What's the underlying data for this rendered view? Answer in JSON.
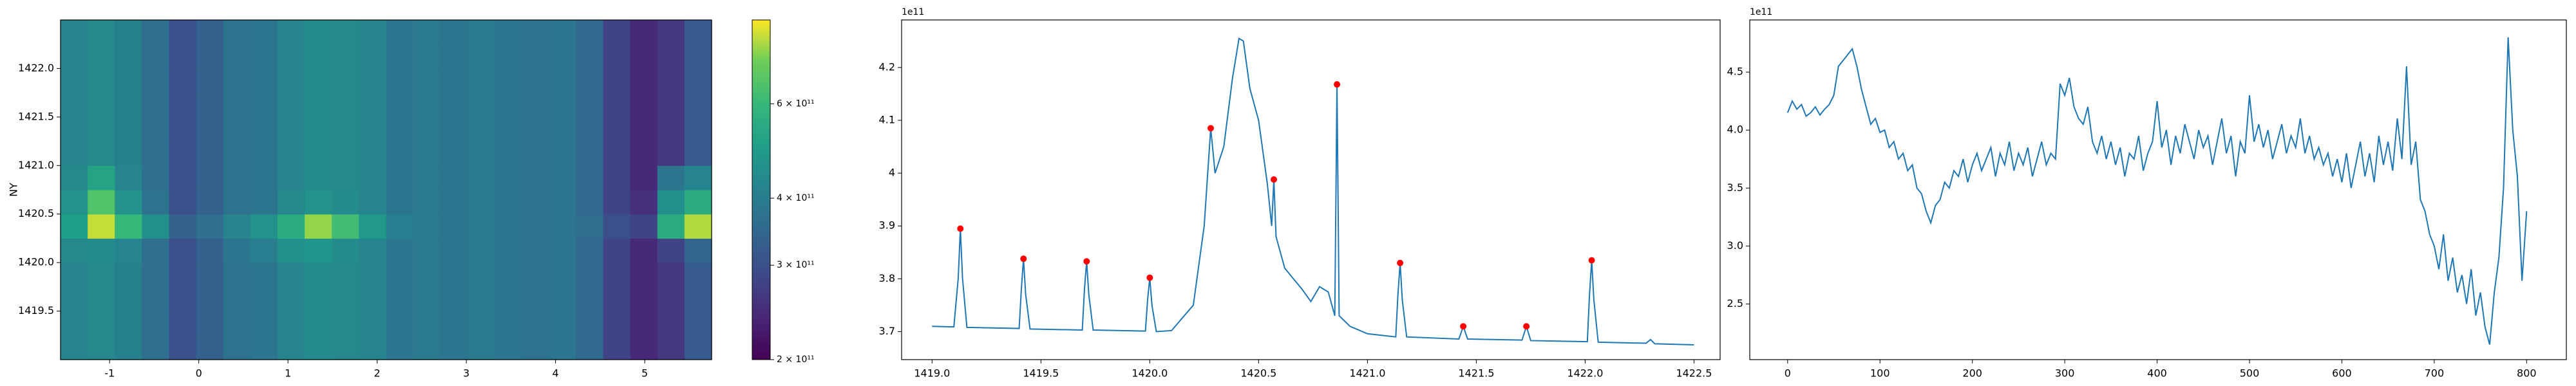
{
  "chart_data": [
    {
      "type": "heatmap",
      "ylabel": "NY",
      "xlim": [
        -1.55,
        5.75
      ],
      "ylim": [
        1419.0,
        1422.5
      ],
      "xticks": [
        -1,
        0,
        1,
        2,
        3,
        4,
        5
      ],
      "yticks": [
        1419.5,
        {
          "value": 1420,
          "label": "1420.0"
        },
        1420.5,
        {
          "value": 1421,
          "label": "1421.0"
        },
        1421.5,
        {
          "value": 1422,
          "label": "1422.0"
        }
      ],
      "log_color": true,
      "clim": [
        200000000000.0,
        860000000000.0
      ],
      "colormap": "viridis",
      "cticks": [
        {
          "value": 200000000000.0,
          "label": "2 × 10¹¹"
        },
        {
          "value": 300000000000.0,
          "label": "3 × 10¹¹"
        },
        {
          "value": 400000000000.0,
          "label": "4 × 10¹¹"
        },
        {
          "value": 600000000000.0,
          "label": "6 × 10¹¹"
        }
      ],
      "z": [
        [
          420000000000.0,
          430000000000.0,
          410000000000.0,
          360000000000.0,
          300000000000.0,
          330000000000.0,
          370000000000.0,
          380000000000.0,
          420000000000.0,
          440000000000.0,
          430000000000.0,
          420000000000.0,
          380000000000.0,
          390000000000.0,
          380000000000.0,
          390000000000.0,
          380000000000.0,
          370000000000.0,
          380000000000.0,
          350000000000.0,
          280000000000.0,
          240000000000.0,
          260000000000.0,
          320000000000.0
        ],
        [
          420000000000.0,
          430000000000.0,
          410000000000.0,
          360000000000.0,
          300000000000.0,
          330000000000.0,
          370000000000.0,
          380000000000.0,
          420000000000.0,
          440000000000.0,
          430000000000.0,
          420000000000.0,
          380000000000.0,
          390000000000.0,
          380000000000.0,
          390000000000.0,
          380000000000.0,
          370000000000.0,
          380000000000.0,
          350000000000.0,
          280000000000.0,
          240000000000.0,
          260000000000.0,
          320000000000.0
        ],
        [
          420000000000.0,
          430000000000.0,
          410000000000.0,
          360000000000.0,
          300000000000.0,
          330000000000.0,
          370000000000.0,
          380000000000.0,
          420000000000.0,
          440000000000.0,
          430000000000.0,
          420000000000.0,
          380000000000.0,
          390000000000.0,
          380000000000.0,
          390000000000.0,
          380000000000.0,
          370000000000.0,
          380000000000.0,
          350000000000.0,
          280000000000.0,
          240000000000.0,
          260000000000.0,
          320000000000.0
        ],
        [
          420000000000.0,
          430000000000.0,
          410000000000.0,
          360000000000.0,
          300000000000.0,
          330000000000.0,
          370000000000.0,
          380000000000.0,
          420000000000.0,
          440000000000.0,
          430000000000.0,
          420000000000.0,
          380000000000.0,
          390000000000.0,
          380000000000.0,
          390000000000.0,
          380000000000.0,
          370000000000.0,
          380000000000.0,
          350000000000.0,
          280000000000.0,
          240000000000.0,
          260000000000.0,
          320000000000.0
        ],
        [
          430000000000.0,
          440000000000.0,
          420000000000.0,
          360000000000.0,
          300000000000.0,
          330000000000.0,
          380000000000.0,
          400000000000.0,
          450000000000.0,
          470000000000.0,
          440000000000.0,
          420000000000.0,
          380000000000.0,
          390000000000.0,
          380000000000.0,
          390000000000.0,
          380000000000.0,
          370000000000.0,
          380000000000.0,
          350000000000.0,
          280000000000.0,
          240000000000.0,
          280000000000.0,
          340000000000.0
        ],
        [
          500000000000.0,
          800000000000.0,
          600000000000.0,
          450000000000.0,
          330000000000.0,
          360000000000.0,
          420000000000.0,
          460000000000.0,
          550000000000.0,
          750000000000.0,
          620000000000.0,
          480000000000.0,
          400000000000.0,
          390000000000.0,
          380000000000.0,
          390000000000.0,
          380000000000.0,
          370000000000.0,
          380000000000.0,
          360000000000.0,
          300000000000.0,
          280000000000.0,
          550000000000.0,
          780000000000.0
        ],
        [
          460000000000.0,
          650000000000.0,
          460000000000.0,
          370000000000.0,
          300000000000.0,
          330000000000.0,
          370000000000.0,
          380000000000.0,
          430000000000.0,
          460000000000.0,
          440000000000.0,
          420000000000.0,
          380000000000.0,
          390000000000.0,
          380000000000.0,
          390000000000.0,
          380000000000.0,
          370000000000.0,
          380000000000.0,
          350000000000.0,
          280000000000.0,
          250000000000.0,
          450000000000.0,
          550000000000.0
        ],
        [
          430000000000.0,
          520000000000.0,
          420000000000.0,
          360000000000.0,
          300000000000.0,
          330000000000.0,
          370000000000.0,
          380000000000.0,
          420000000000.0,
          440000000000.0,
          430000000000.0,
          420000000000.0,
          380000000000.0,
          390000000000.0,
          380000000000.0,
          390000000000.0,
          380000000000.0,
          370000000000.0,
          380000000000.0,
          350000000000.0,
          280000000000.0,
          240000000000.0,
          380000000000.0,
          420000000000.0
        ],
        [
          420000000000.0,
          430000000000.0,
          410000000000.0,
          360000000000.0,
          300000000000.0,
          330000000000.0,
          370000000000.0,
          380000000000.0,
          420000000000.0,
          440000000000.0,
          430000000000.0,
          420000000000.0,
          380000000000.0,
          390000000000.0,
          380000000000.0,
          390000000000.0,
          380000000000.0,
          370000000000.0,
          380000000000.0,
          350000000000.0,
          280000000000.0,
          240000000000.0,
          260000000000.0,
          320000000000.0
        ],
        [
          420000000000.0,
          430000000000.0,
          410000000000.0,
          360000000000.0,
          300000000000.0,
          330000000000.0,
          370000000000.0,
          380000000000.0,
          420000000000.0,
          440000000000.0,
          430000000000.0,
          420000000000.0,
          380000000000.0,
          390000000000.0,
          380000000000.0,
          390000000000.0,
          380000000000.0,
          370000000000.0,
          380000000000.0,
          350000000000.0,
          280000000000.0,
          240000000000.0,
          260000000000.0,
          320000000000.0
        ],
        [
          420000000000.0,
          430000000000.0,
          410000000000.0,
          360000000000.0,
          300000000000.0,
          330000000000.0,
          370000000000.0,
          380000000000.0,
          420000000000.0,
          440000000000.0,
          430000000000.0,
          420000000000.0,
          380000000000.0,
          390000000000.0,
          380000000000.0,
          390000000000.0,
          380000000000.0,
          370000000000.0,
          380000000000.0,
          350000000000.0,
          280000000000.0,
          240000000000.0,
          260000000000.0,
          320000000000.0
        ],
        [
          420000000000.0,
          430000000000.0,
          410000000000.0,
          360000000000.0,
          300000000000.0,
          330000000000.0,
          370000000000.0,
          380000000000.0,
          420000000000.0,
          440000000000.0,
          430000000000.0,
          420000000000.0,
          380000000000.0,
          390000000000.0,
          380000000000.0,
          390000000000.0,
          380000000000.0,
          370000000000.0,
          380000000000.0,
          350000000000.0,
          280000000000.0,
          240000000000.0,
          260000000000.0,
          320000000000.0
        ],
        [
          420000000000.0,
          430000000000.0,
          410000000000.0,
          360000000000.0,
          300000000000.0,
          330000000000.0,
          370000000000.0,
          380000000000.0,
          420000000000.0,
          440000000000.0,
          430000000000.0,
          420000000000.0,
          380000000000.0,
          390000000000.0,
          380000000000.0,
          390000000000.0,
          380000000000.0,
          370000000000.0,
          380000000000.0,
          350000000000.0,
          280000000000.0,
          240000000000.0,
          260000000000.0,
          320000000000.0
        ],
        [
          420000000000.0,
          430000000000.0,
          410000000000.0,
          360000000000.0,
          300000000000.0,
          330000000000.0,
          370000000000.0,
          380000000000.0,
          420000000000.0,
          440000000000.0,
          430000000000.0,
          420000000000.0,
          380000000000.0,
          390000000000.0,
          380000000000.0,
          390000000000.0,
          380000000000.0,
          370000000000.0,
          380000000000.0,
          350000000000.0,
          280000000000.0,
          240000000000.0,
          260000000000.0,
          320000000000.0
        ]
      ]
    },
    {
      "type": "line",
      "offset_label": "1e11",
      "color": "#1f77b4",
      "xlim": [
        1418.86,
        1422.62
      ],
      "ylim": [
        3.647,
        4.29
      ],
      "xticks": [
        {
          "value": 1419,
          "label": "1419.0"
        },
        1419.5,
        {
          "value": 1420,
          "label": "1420.0"
        },
        1420.5,
        {
          "value": 1421,
          "label": "1421.0"
        },
        1421.5,
        {
          "value": 1422,
          "label": "1422.0"
        },
        1422.5
      ],
      "yticks": [
        3.7,
        3.8,
        3.9,
        4.0,
        4.1,
        4.2
      ],
      "x": [
        1419.0,
        1419.1,
        1419.12,
        1419.13,
        1419.14,
        1419.16,
        1419.4,
        1419.41,
        1419.42,
        1419.43,
        1419.45,
        1419.69,
        1419.7,
        1419.71,
        1419.72,
        1419.74,
        1419.98,
        1419.99,
        1420.0,
        1420.01,
        1420.03,
        1420.1,
        1420.2,
        1420.25,
        1420.28,
        1420.3,
        1420.34,
        1420.38,
        1420.41,
        1420.43,
        1420.46,
        1420.5,
        1420.54,
        1420.56,
        1420.57,
        1420.58,
        1420.62,
        1420.66,
        1420.7,
        1420.74,
        1420.78,
        1420.82,
        1420.85,
        1420.86,
        1420.87,
        1420.92,
        1421.0,
        1421.13,
        1421.14,
        1421.15,
        1421.16,
        1421.18,
        1421.42,
        1421.44,
        1421.46,
        1421.71,
        1421.73,
        1421.75,
        1422.01,
        1422.02,
        1422.03,
        1422.04,
        1422.06,
        1422.28,
        1422.3,
        1422.32,
        1422.5
      ],
      "values": [
        3.71,
        3.709,
        3.8,
        3.895,
        3.8,
        3.708,
        3.706,
        3.78,
        3.838,
        3.77,
        3.705,
        3.703,
        3.78,
        3.833,
        3.77,
        3.703,
        3.701,
        3.76,
        3.802,
        3.75,
        3.7,
        3.702,
        3.75,
        3.9,
        4.085,
        4.0,
        4.05,
        4.18,
        4.255,
        4.25,
        4.16,
        4.1,
        3.98,
        3.9,
        3.988,
        3.88,
        3.82,
        3.8,
        3.78,
        3.757,
        3.785,
        3.775,
        3.73,
        4.168,
        3.73,
        3.71,
        3.696,
        3.69,
        3.77,
        3.83,
        3.76,
        3.69,
        3.686,
        3.71,
        3.686,
        3.684,
        3.71,
        3.683,
        3.681,
        3.77,
        3.835,
        3.76,
        3.68,
        3.678,
        3.685,
        3.677,
        3.675
      ],
      "peaks_color": "red",
      "peaks_x": [
        1419.13,
        1419.42,
        1419.71,
        1420.0,
        1420.28,
        1420.57,
        1420.86,
        1421.15,
        1421.44,
        1421.73,
        1422.03
      ],
      "peaks_values": [
        3.895,
        3.838,
        3.833,
        3.802,
        4.085,
        3.988,
        4.168,
        3.83,
        3.71,
        3.71,
        3.835
      ]
    },
    {
      "type": "line",
      "offset_label": "1e11",
      "color": "#1f77b4",
      "xlim": [
        -41,
        843
      ],
      "ylim": [
        2.02,
        4.95
      ],
      "xticks": [
        0,
        100,
        200,
        300,
        400,
        500,
        600,
        700,
        800
      ],
      "yticks": [
        2.5,
        {
          "value": 3,
          "label": "3.0"
        },
        3.5,
        {
          "value": 4,
          "label": "4.0"
        },
        4.5
      ],
      "x": [
        0,
        5,
        10,
        15,
        20,
        25,
        30,
        35,
        40,
        45,
        50,
        55,
        60,
        65,
        70,
        75,
        80,
        85,
        90,
        95,
        100,
        105,
        110,
        115,
        120,
        125,
        130,
        135,
        140,
        145,
        150,
        155,
        160,
        165,
        170,
        175,
        180,
        185,
        190,
        195,
        200,
        205,
        210,
        215,
        220,
        225,
        230,
        235,
        240,
        245,
        250,
        255,
        260,
        265,
        270,
        275,
        280,
        285,
        290,
        295,
        300,
        305,
        310,
        315,
        320,
        325,
        330,
        335,
        340,
        345,
        350,
        355,
        360,
        365,
        370,
        375,
        380,
        385,
        390,
        395,
        400,
        405,
        410,
        415,
        420,
        425,
        430,
        435,
        440,
        445,
        450,
        455,
        460,
        465,
        470,
        475,
        480,
        485,
        490,
        495,
        500,
        505,
        510,
        515,
        520,
        525,
        530,
        535,
        540,
        545,
        550,
        555,
        560,
        565,
        570,
        575,
        580,
        585,
        590,
        595,
        600,
        605,
        610,
        615,
        620,
        625,
        630,
        635,
        640,
        645,
        650,
        655,
        660,
        665,
        670,
        675,
        680,
        685,
        690,
        695,
        700,
        705,
        710,
        715,
        720,
        725,
        730,
        735,
        740,
        745,
        750,
        755,
        760,
        765,
        770,
        775,
        780,
        785,
        790,
        795,
        800
      ],
      "values": [
        4.15,
        4.25,
        4.18,
        4.22,
        4.12,
        4.15,
        4.2,
        4.13,
        4.18,
        4.22,
        4.3,
        4.55,
        4.6,
        4.65,
        4.7,
        4.55,
        4.35,
        4.2,
        4.05,
        4.1,
        3.98,
        4.0,
        3.85,
        3.9,
        3.75,
        3.8,
        3.65,
        3.7,
        3.5,
        3.45,
        3.3,
        3.2,
        3.35,
        3.4,
        3.55,
        3.5,
        3.65,
        3.6,
        3.75,
        3.55,
        3.7,
        3.8,
        3.65,
        3.75,
        3.85,
        3.6,
        3.8,
        3.7,
        3.9,
        3.65,
        3.8,
        3.7,
        3.85,
        3.6,
        3.75,
        3.9,
        3.7,
        3.8,
        3.75,
        4.4,
        4.3,
        4.45,
        4.2,
        4.1,
        4.05,
        4.2,
        3.9,
        3.8,
        3.95,
        3.75,
        3.9,
        3.7,
        3.85,
        3.6,
        3.8,
        3.75,
        3.95,
        3.65,
        3.8,
        3.9,
        4.25,
        3.85,
        4.0,
        3.7,
        3.95,
        3.8,
        4.05,
        3.9,
        3.75,
        4.0,
        3.85,
        3.95,
        3.7,
        3.9,
        4.1,
        3.8,
        3.95,
        3.6,
        3.9,
        3.8,
        4.3,
        3.9,
        4.05,
        3.85,
        4.0,
        3.75,
        3.9,
        4.05,
        3.8,
        3.95,
        3.85,
        4.1,
        3.8,
        3.95,
        3.75,
        3.85,
        3.7,
        3.8,
        3.6,
        3.75,
        3.55,
        3.8,
        3.5,
        3.7,
        3.9,
        3.6,
        3.8,
        3.55,
        3.95,
        3.7,
        3.9,
        3.65,
        4.1,
        3.75,
        4.55,
        3.7,
        3.9,
        3.4,
        3.3,
        3.1,
        3.0,
        2.8,
        3.1,
        2.7,
        2.9,
        2.6,
        2.75,
        2.5,
        2.8,
        2.4,
        2.6,
        2.3,
        2.15,
        2.6,
        2.9,
        3.5,
        4.8,
        4.0,
        3.6,
        2.7,
        3.3
      ]
    }
  ]
}
